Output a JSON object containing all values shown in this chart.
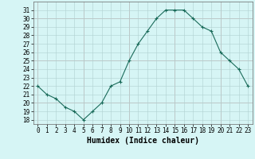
{
  "x": [
    0,
    1,
    2,
    3,
    4,
    5,
    6,
    7,
    8,
    9,
    10,
    11,
    12,
    13,
    14,
    15,
    16,
    17,
    18,
    19,
    20,
    21,
    22,
    23
  ],
  "y": [
    22,
    21,
    20.5,
    19.5,
    19,
    18,
    19,
    20,
    22,
    22.5,
    25,
    27,
    28.5,
    30,
    31,
    31,
    31,
    30,
    29,
    28.5,
    26,
    25,
    24,
    22
  ],
  "line_color": "#1a6b5a",
  "marker": "+",
  "marker_size": 3,
  "marker_linewidth": 0.8,
  "bg_color": "#d6f5f5",
  "grid_color": "#b0d0d0",
  "grid_major_color": "#c8a8a8",
  "xlabel": "Humidex (Indice chaleur)",
  "ylim": [
    17.5,
    32
  ],
  "xlim": [
    -0.5,
    23.5
  ],
  "yticks": [
    18,
    19,
    20,
    21,
    22,
    23,
    24,
    25,
    26,
    27,
    28,
    29,
    30,
    31
  ],
  "xticks": [
    0,
    1,
    2,
    3,
    4,
    5,
    6,
    7,
    8,
    9,
    10,
    11,
    12,
    13,
    14,
    15,
    16,
    17,
    18,
    19,
    20,
    21,
    22,
    23
  ],
  "tick_label_fontsize": 5.5,
  "xlabel_fontsize": 7,
  "line_width": 0.8
}
